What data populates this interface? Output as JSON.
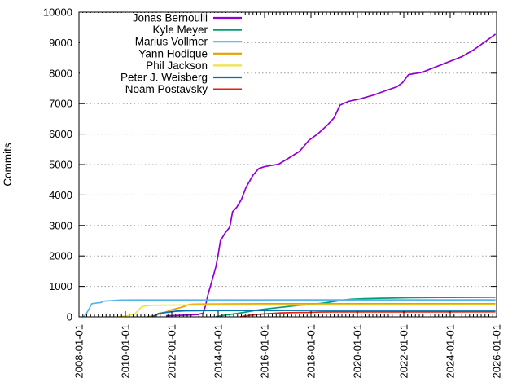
{
  "figure": {
    "background": "#ffffff",
    "border_color": "#000000",
    "grid_color": "#9c9c9c",
    "text_color": "#000000"
  },
  "chart_data": {
    "type": "line",
    "title": "",
    "xlabel": "",
    "ylabel": "Commits",
    "legend": {
      "position": "top-left-inside",
      "opaque": true,
      "entries": [
        "Jonas Bernoulli",
        "Kyle Meyer",
        "Marius Vollmer",
        "Yann Hodique",
        "Phil Jackson",
        "Peter J. Weisberg",
        "Noam Postavsky"
      ]
    },
    "x_axis": {
      "range": [
        2008.0,
        2026.0
      ],
      "tick_years": [
        2008,
        2010,
        2012,
        2014,
        2016,
        2018,
        2020,
        2022,
        2024,
        2026
      ],
      "tick_labels": [
        "2008-01-01",
        "2010-01-01",
        "2012-01-01",
        "2014-01-01",
        "2016-01-01",
        "2018-01-01",
        "2020-01-01",
        "2022-01-01",
        "2024-01-01",
        "2026-01-01"
      ],
      "label_rotation_deg": -90,
      "minor_tick_step_years": 0.16667
    },
    "y_axis": {
      "range": [
        0,
        10000
      ],
      "ticks": [
        0,
        1000,
        2000,
        3000,
        4000,
        5000,
        6000,
        7000,
        8000,
        9000,
        10000
      ],
      "grid": true
    },
    "series": [
      {
        "name": "Jonas Bernoulli",
        "color": "#9400d3",
        "points": [
          [
            2011.75,
            35
          ],
          [
            2012.6,
            55
          ],
          [
            2013.1,
            75
          ],
          [
            2013.35,
            120
          ],
          [
            2013.45,
            350
          ],
          [
            2013.55,
            700
          ],
          [
            2013.7,
            1100
          ],
          [
            2013.9,
            1650
          ],
          [
            2014.0,
            2050
          ],
          [
            2014.1,
            2500
          ],
          [
            2014.3,
            2750
          ],
          [
            2014.5,
            2950
          ],
          [
            2014.62,
            3450
          ],
          [
            2014.8,
            3600
          ],
          [
            2015.0,
            3850
          ],
          [
            2015.2,
            4250
          ],
          [
            2015.5,
            4650
          ],
          [
            2015.75,
            4870
          ],
          [
            2016.0,
            4930
          ],
          [
            2016.6,
            5010
          ],
          [
            2017.0,
            5190
          ],
          [
            2017.5,
            5430
          ],
          [
            2017.9,
            5790
          ],
          [
            2018.3,
            6010
          ],
          [
            2018.7,
            6290
          ],
          [
            2019.0,
            6540
          ],
          [
            2019.25,
            6950
          ],
          [
            2019.6,
            7070
          ],
          [
            2020.1,
            7150
          ],
          [
            2020.7,
            7280
          ],
          [
            2021.2,
            7420
          ],
          [
            2021.7,
            7550
          ],
          [
            2021.95,
            7690
          ],
          [
            2022.2,
            7950
          ],
          [
            2022.8,
            8030
          ],
          [
            2023.3,
            8180
          ],
          [
            2023.9,
            8360
          ],
          [
            2024.5,
            8540
          ],
          [
            2025.0,
            8760
          ],
          [
            2025.5,
            9030
          ],
          [
            2025.95,
            9280
          ]
        ]
      },
      {
        "name": "Kyle Meyer",
        "color": "#009e73",
        "points": [
          [
            2013.9,
            5
          ],
          [
            2014.3,
            55
          ],
          [
            2014.8,
            110
          ],
          [
            2015.0,
            135
          ],
          [
            2015.5,
            200
          ],
          [
            2015.9,
            245
          ],
          [
            2016.4,
            290
          ],
          [
            2016.9,
            330
          ],
          [
            2017.4,
            375
          ],
          [
            2017.9,
            405
          ],
          [
            2018.5,
            450
          ],
          [
            2018.9,
            495
          ],
          [
            2019.3,
            545
          ],
          [
            2019.7,
            580
          ],
          [
            2020.3,
            600
          ],
          [
            2021.0,
            612
          ],
          [
            2021.9,
            622
          ],
          [
            2022.3,
            632
          ],
          [
            2023.5,
            636
          ],
          [
            2024.0,
            640
          ],
          [
            2025.95,
            645
          ]
        ]
      },
      {
        "name": "Marius Vollmer",
        "color": "#56b4e9",
        "points": [
          [
            2008.2,
            0
          ],
          [
            2008.3,
            80
          ],
          [
            2008.45,
            280
          ],
          [
            2008.55,
            430
          ],
          [
            2008.8,
            460
          ],
          [
            2008.95,
            470
          ],
          [
            2009.05,
            515
          ],
          [
            2009.4,
            532
          ],
          [
            2009.8,
            552
          ],
          [
            2010.5,
            555
          ],
          [
            2025.95,
            558
          ]
        ]
      },
      {
        "name": "Yann Hodique",
        "color": "#e69f00",
        "points": [
          [
            2010.95,
            5
          ],
          [
            2011.3,
            45
          ],
          [
            2011.5,
            115
          ],
          [
            2011.8,
            175
          ],
          [
            2012.0,
            235
          ],
          [
            2012.35,
            300
          ],
          [
            2012.55,
            345
          ],
          [
            2012.75,
            408
          ],
          [
            2013.0,
            418
          ],
          [
            2013.8,
            422
          ],
          [
            2015.3,
            428
          ],
          [
            2016.0,
            430
          ],
          [
            2025.95,
            433
          ]
        ]
      },
      {
        "name": "Phil Jackson",
        "color": "#f0e442",
        "points": [
          [
            2009.7,
            5
          ],
          [
            2010.1,
            40
          ],
          [
            2010.4,
            90
          ],
          [
            2010.55,
            210
          ],
          [
            2010.7,
            330
          ],
          [
            2010.9,
            360
          ],
          [
            2011.1,
            378
          ],
          [
            2011.6,
            385
          ],
          [
            2012.5,
            388
          ],
          [
            2025.95,
            392
          ]
        ]
      },
      {
        "name": "Peter J. Weisberg",
        "color": "#0072b2",
        "points": [
          [
            2011.15,
            5
          ],
          [
            2011.3,
            60
          ],
          [
            2011.45,
            115
          ],
          [
            2011.7,
            140
          ],
          [
            2011.9,
            160
          ],
          [
            2012.2,
            188
          ],
          [
            2012.6,
            200
          ],
          [
            2013.5,
            206
          ],
          [
            2016.0,
            210
          ],
          [
            2025.95,
            214
          ]
        ]
      },
      {
        "name": "Noam Postavsky",
        "color": "#e51e10",
        "points": [
          [
            2014.95,
            5
          ],
          [
            2015.3,
            45
          ],
          [
            2015.7,
            80
          ],
          [
            2016.0,
            100
          ],
          [
            2016.7,
            130
          ],
          [
            2017.3,
            142
          ],
          [
            2017.9,
            148
          ],
          [
            2018.4,
            160
          ],
          [
            2019.0,
            163
          ],
          [
            2025.95,
            166
          ]
        ]
      }
    ]
  }
}
